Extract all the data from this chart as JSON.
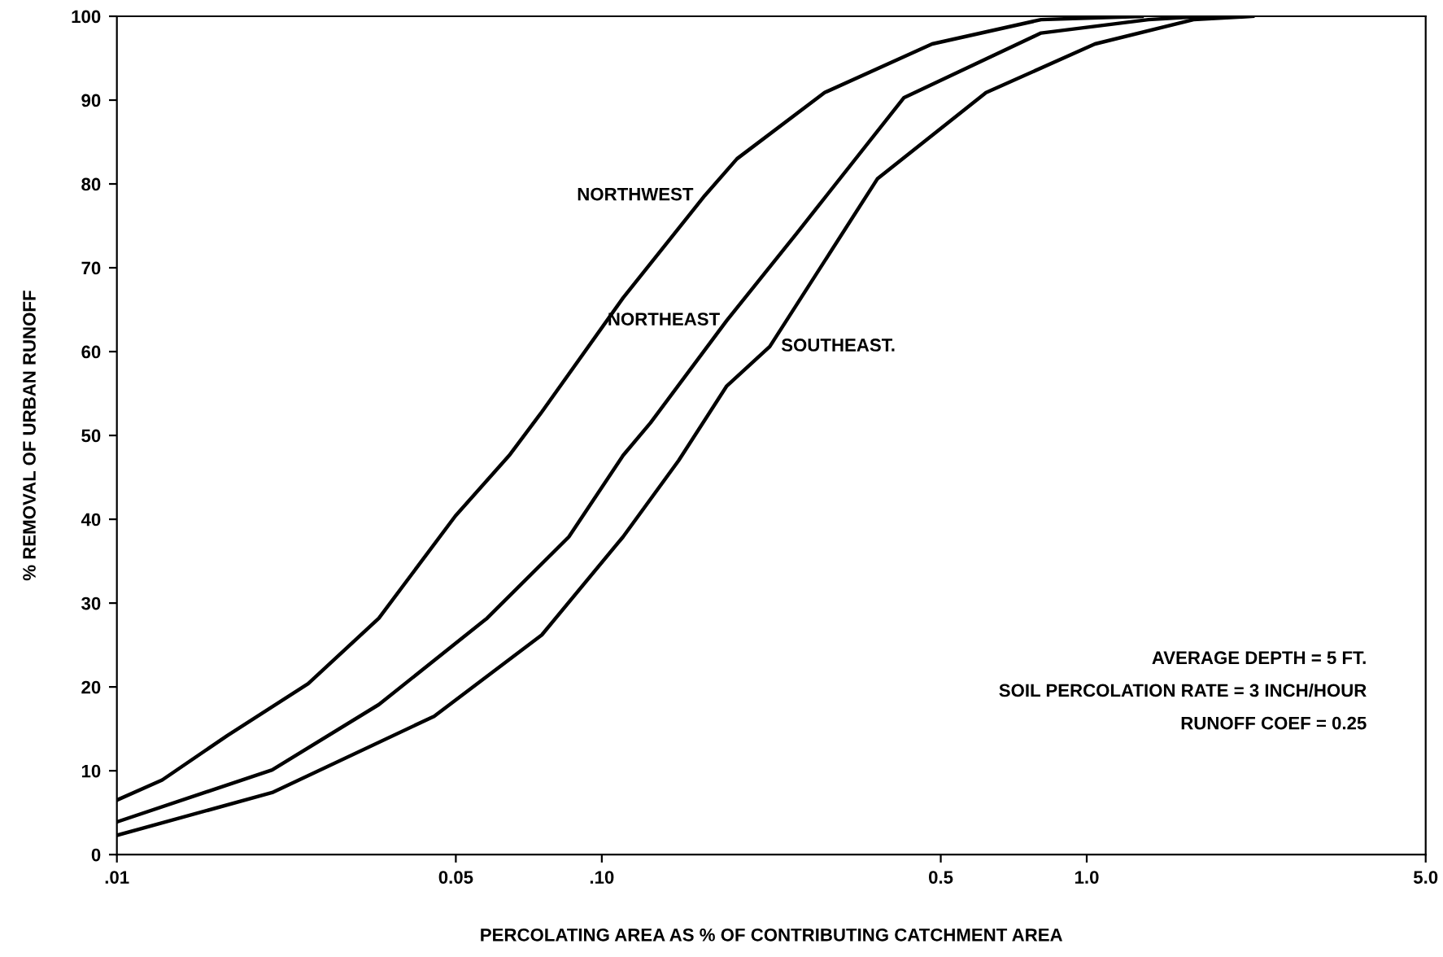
{
  "chart_data": {
    "type": "line",
    "xlabel": "PERCOLATING AREA AS % OF CONTRIBUTING CATCHMENT AREA",
    "ylabel": "% REMOVAL OF URBAN RUNOFF",
    "log": "x",
    "xlim": [
      0.01,
      5.0
    ],
    "ylim": [
      0,
      100
    ],
    "xticks": [
      {
        "value": 0.01,
        "label": ".01"
      },
      {
        "value": 0.05,
        "label": "0.05"
      },
      {
        "value": 0.1,
        "label": ".10"
      },
      {
        "value": 0.5,
        "label": "0.5"
      },
      {
        "value": 1.0,
        "label": "1.0"
      },
      {
        "value": 5.0,
        "label": "5.0"
      }
    ],
    "yticks": [
      0,
      10,
      20,
      30,
      40,
      50,
      60,
      70,
      80,
      90,
      100
    ],
    "grid": false,
    "legend": false,
    "marker": "none",
    "line_style": "solid",
    "series": [
      {
        "name": "NORTHWEST",
        "color": "#000000",
        "x": [
          0.01,
          0.0124,
          0.0169,
          0.0248,
          0.0347,
          0.0499,
          0.0644,
          0.0752,
          0.1106,
          0.163,
          0.19,
          0.288,
          0.48,
          0.805,
          1.3
        ],
        "values": [
          6.5,
          8.9,
          14.2,
          20.4,
          28.2,
          40.4,
          47.6,
          52.8,
          66.4,
          78.6,
          83,
          90.9,
          96.7,
          99.6,
          100
        ]
      },
      {
        "name": "NORTHEAST",
        "color": "#000000",
        "x": [
          0.01,
          0.0209,
          0.0347,
          0.058,
          0.0855,
          0.1106,
          0.126,
          0.181,
          0.253,
          0.42,
          0.805,
          1.34,
          1.75
        ],
        "values": [
          3.9,
          10.1,
          17.9,
          28.2,
          37.9,
          47.6,
          51.5,
          63.7,
          74.2,
          90.3,
          98,
          99.6,
          100
        ]
      },
      {
        "name": "SOUTHEAST.",
        "color": "#000000",
        "x": [
          0.01,
          0.0209,
          0.0451,
          0.0752,
          0.1106,
          0.144,
          0.181,
          0.222,
          0.37,
          0.62,
          1.04,
          1.66,
          2.2
        ],
        "values": [
          2.3,
          7.4,
          16.5,
          26.2,
          37.9,
          47,
          55.9,
          60.6,
          80.6,
          90.9,
          96.7,
          99.6,
          100
        ]
      }
    ],
    "annotations": [
      "AVERAGE DEPTH = 5 FT.",
      "SOIL PERCOLATION RATE = 3 INCH/HOUR",
      "RUNOFF COEF = 0.25"
    ]
  }
}
